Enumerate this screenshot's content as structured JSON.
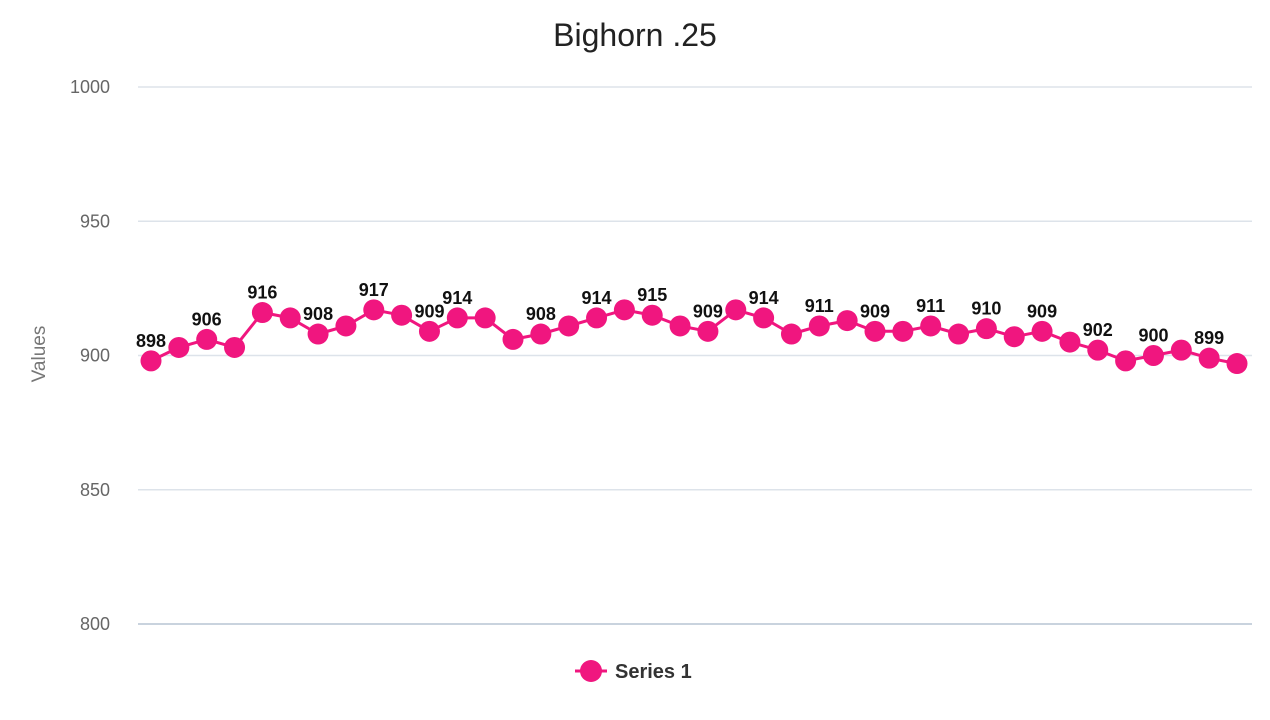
{
  "chart_data": {
    "type": "line",
    "title": "Bighorn .25",
    "xlabel": "",
    "ylabel": "Values",
    "ylim": [
      800,
      1000
    ],
    "yticks": [
      800,
      850,
      900,
      950,
      1000
    ],
    "grid": true,
    "legend_position": "bottom",
    "series": [
      {
        "name": "Series 1",
        "color": "#f0167f",
        "values": [
          898,
          903,
          906,
          903,
          916,
          914,
          908,
          911,
          917,
          915,
          909,
          914,
          914,
          906,
          908,
          911,
          914,
          917,
          915,
          911,
          909,
          917,
          914,
          908,
          911,
          913,
          909,
          909,
          911,
          908,
          910,
          907,
          909,
          905,
          902,
          898,
          900,
          902,
          899,
          897
        ],
        "labels": [
          "898",
          "",
          "906",
          "",
          "916",
          "",
          "908",
          "",
          "917",
          "",
          "909",
          "914",
          "",
          "",
          "908",
          "",
          "914",
          "",
          "915",
          "",
          "909",
          "",
          "914",
          "",
          "911",
          "",
          "909",
          "",
          "911",
          "",
          "910",
          "",
          "909",
          "",
          "902",
          "",
          "900",
          "",
          "899",
          ""
        ]
      }
    ]
  }
}
